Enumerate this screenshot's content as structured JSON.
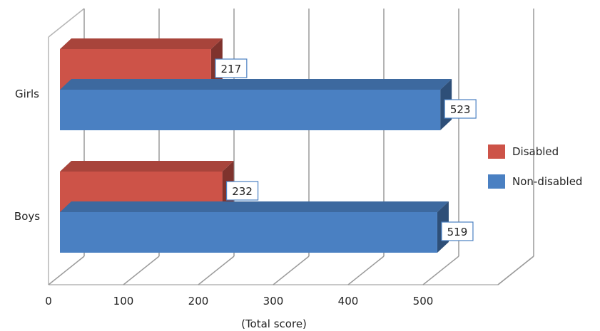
{
  "chart_data": {
    "type": "bar",
    "orientation": "horizontal",
    "style": "3d",
    "categories": [
      "Girls",
      "Boys"
    ],
    "series": [
      {
        "name": "Disabled",
        "values": [
          217,
          232
        ],
        "color": "#cd5348"
      },
      {
        "name": "Non-disabled",
        "values": [
          523,
          519
        ],
        "color": "#4a80c2"
      }
    ],
    "xlabel": "(Total score)",
    "ylabel": "",
    "xlim": [
      0,
      600
    ],
    "x_ticks": [
      0,
      100,
      200,
      300,
      400,
      500
    ],
    "grid": true,
    "legend": {
      "position": "right",
      "entries": [
        "Disabled",
        "Non-disabled"
      ]
    },
    "data_labels": true
  }
}
